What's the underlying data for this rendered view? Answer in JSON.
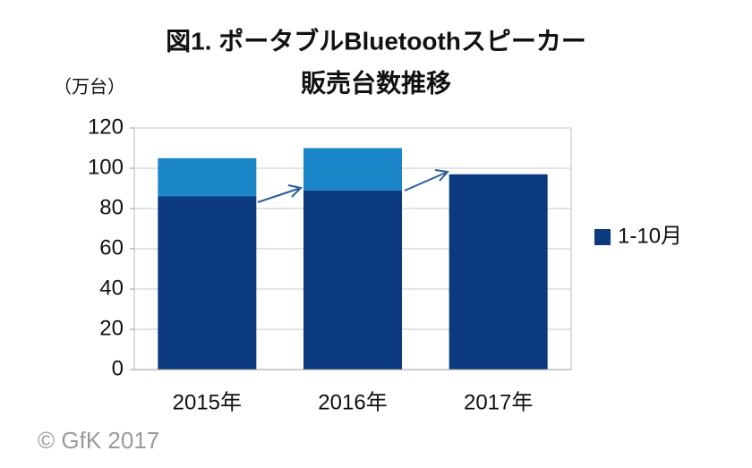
{
  "chart_data": {
    "type": "bar",
    "stacked": true,
    "title": "図1. ポータブルBluetoothスピーカー",
    "subtitle": "販売台数推移",
    "y_label": "（万台）",
    "annotation": "© GfK 2017",
    "categories": [
      "2015年",
      "2016年",
      "2017年"
    ],
    "series": [
      {
        "name": "1-10月",
        "color": "#0b3a7e",
        "values": [
          86,
          89,
          97
        ]
      },
      {
        "color": "#1a86c8",
        "values": [
          19,
          21,
          null
        ]
      }
    ],
    "ylim": [
      0,
      120
    ],
    "yticks": [
      0,
      20,
      40,
      60,
      80,
      100,
      120
    ],
    "grid": true
  }
}
